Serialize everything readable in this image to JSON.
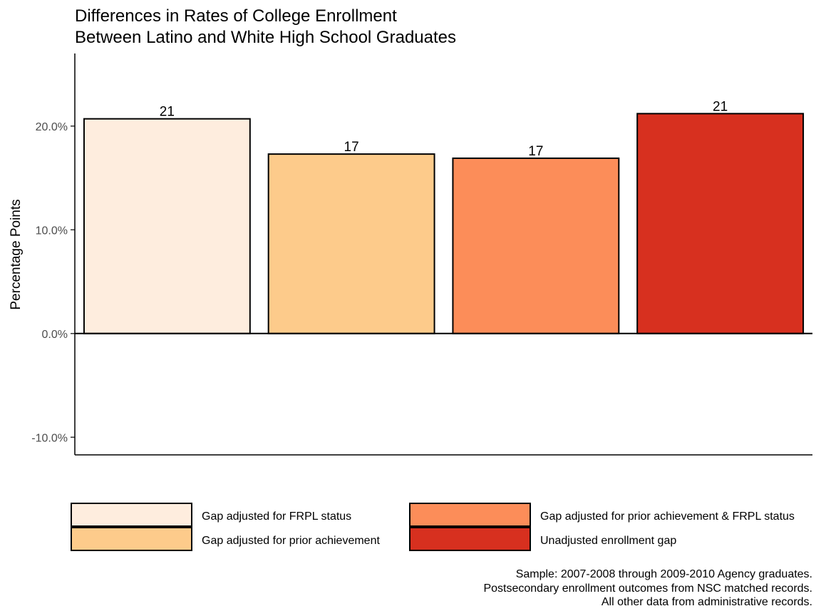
{
  "chart_data": {
    "type": "bar",
    "title": [
      "Differences in Rates of College Enrollment",
      "Between Latino and White High School Graduates"
    ],
    "ylabel": "Percentage Points",
    "xlabel": "",
    "ylim": [
      -0.117,
      0.27
    ],
    "y_ticks": [
      {
        "value": 0.2,
        "label": "20.0%"
      },
      {
        "value": 0.1,
        "label": "10.0%"
      },
      {
        "value": 0.0,
        "label": "0.0%"
      },
      {
        "value": -0.1,
        "label": "-10.0%"
      }
    ],
    "categories": [
      "Gap adjusted for FRPL status",
      "Gap adjusted for prior achievement",
      "Gap adjusted for prior achievement & FRPL status",
      "Unadjusted enrollment gap"
    ],
    "values": [
      0.207,
      0.173,
      0.169,
      0.212
    ],
    "data_labels": [
      "21",
      "17",
      "17",
      "21"
    ],
    "colors": [
      "#FEEDDE",
      "#FDCB8B",
      "#FC8D59",
      "#D7301F"
    ],
    "legend": {
      "position": "bottom",
      "entries": [
        {
          "label": "Gap adjusted for FRPL status",
          "color": "#FEEDDE"
        },
        {
          "label": "Gap adjusted for prior achievement",
          "color": "#FDCB8B"
        },
        {
          "label": "Gap adjusted for prior achievement & FRPL status",
          "color": "#FC8D59"
        },
        {
          "label": "Unadjusted enrollment gap",
          "color": "#D7301F"
        }
      ]
    },
    "caption": [
      "Sample: 2007-2008 through 2009-2010 Agency graduates.",
      "Postsecondary enrollment outcomes from NSC matched records.",
      "All other data from administrative records."
    ],
    "grid": false,
    "zero_line": true
  }
}
